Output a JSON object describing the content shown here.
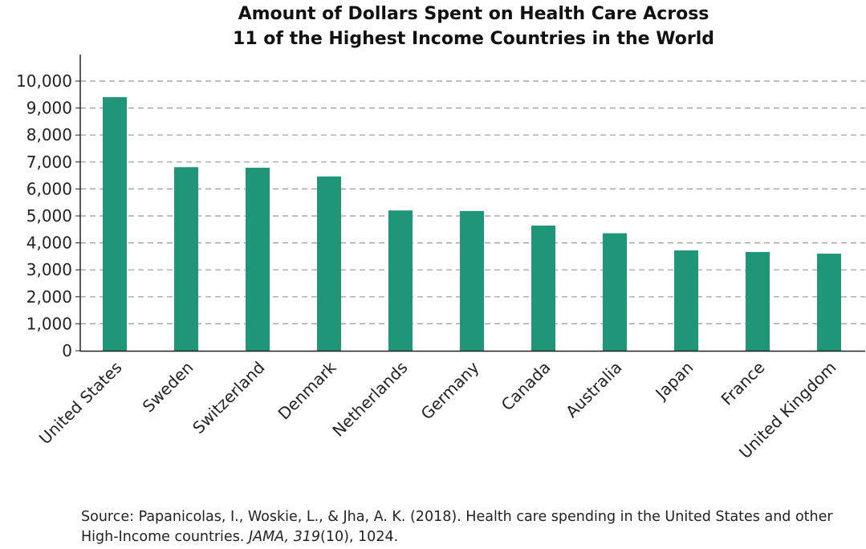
{
  "chart_data": {
    "type": "bar",
    "title": [
      "Amount of Dollars Spent on Health Care Across",
      "11 of the Highest Income Countries in the World"
    ],
    "xlabel": "",
    "ylabel": "",
    "categories": [
      "United States",
      "Sweden",
      "Switzerland",
      "Denmark",
      "Netherlands",
      "Germany",
      "Canada",
      "Australia",
      "Japan",
      "France",
      "United Kingdom"
    ],
    "values": [
      9403,
      6808,
      6787,
      6463,
      5202,
      5182,
      4641,
      4357,
      3720,
      3660,
      3600
    ],
    "ylim": [
      0,
      10000
    ],
    "yticks": [
      0,
      1000,
      2000,
      3000,
      4000,
      5000,
      6000,
      7000,
      8000,
      9000,
      10000
    ],
    "ytick_labels": [
      "0",
      "1,000",
      "2,000",
      "3,000",
      "4,000",
      "5,000",
      "6,000",
      "7,000",
      "8,000",
      "9,000",
      "10,000"
    ],
    "grid": "horizontal dashed",
    "bar_color": "#1e9677",
    "grid_color": "#999999"
  },
  "source": {
    "prefix": "Source: Papanicolas, I., Woskie, L., & Jha, A. K. (2018). Health care spending in the United States and other High-Income countries. ",
    "journal": "JAMA, ",
    "volume": "319",
    "rest": "(10), 1024."
  }
}
